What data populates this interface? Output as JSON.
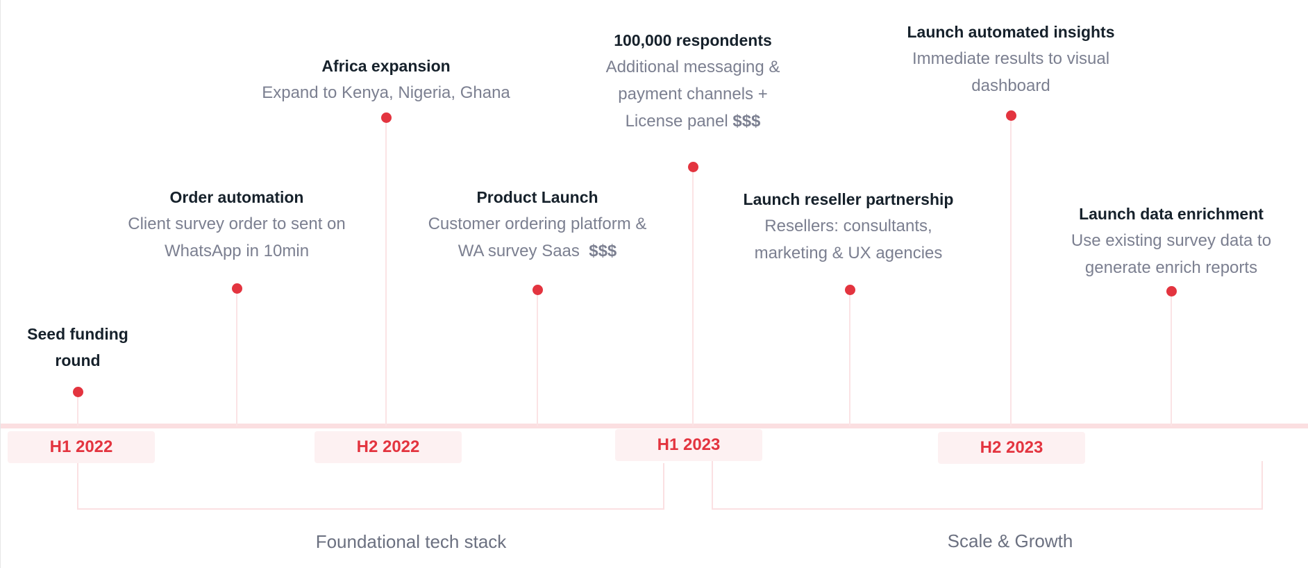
{
  "colors": {
    "accent": "#e3343f",
    "track": "#fbdfe1",
    "title": "#16212b",
    "description": "#7b7f90"
  },
  "milestones": [
    {
      "title_lines": [
        "Seed funding",
        "round"
      ],
      "desc": []
    },
    {
      "title_lines": [
        "Order automation"
      ],
      "desc": [
        {
          "text": "Client survey order to sent on"
        },
        {
          "text": "WhatsApp in 10min"
        }
      ]
    },
    {
      "title_lines": [
        "Africa expansion"
      ],
      "desc": [
        {
          "text": "Expand to Kenya, Nigeria, Ghana"
        }
      ]
    },
    {
      "title_lines": [
        "Product Launch"
      ],
      "desc": [
        {
          "text": "Customer ordering platform &"
        },
        {
          "text": "WA survey Saas  ",
          "bold": "$$$"
        }
      ]
    },
    {
      "title_lines": [
        "100,000 respondents"
      ],
      "desc": [
        {
          "text": "Additional messaging &"
        },
        {
          "text": "payment channels +"
        },
        {
          "text": "License panel ",
          "bold": "$$$"
        }
      ]
    },
    {
      "title_lines": [
        "Launch reseller partnership"
      ],
      "desc": [
        {
          "text": "Resellers: consultants,"
        },
        {
          "text": "marketing & UX agencies"
        }
      ]
    },
    {
      "title_lines": [
        "Launch automated insights"
      ],
      "desc": [
        {
          "text": "Immediate results to visual"
        },
        {
          "text": "dashboard"
        }
      ]
    },
    {
      "title_lines": [
        "Launch data enrichment"
      ],
      "desc": [
        {
          "text": "Use existing survey data to"
        },
        {
          "text": "generate enrich reports"
        }
      ]
    }
  ],
  "periods": [
    "H1 2022",
    "H2 2022",
    "H1 2023",
    "H2 2023"
  ],
  "phases": [
    "Foundational tech stack",
    "Scale & Growth"
  ]
}
